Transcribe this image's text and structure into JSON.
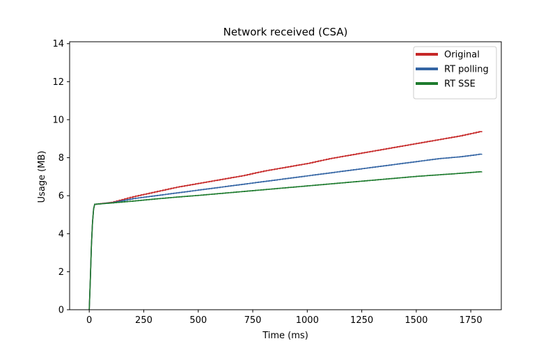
{
  "chart_data": {
    "type": "line",
    "title": "Network received (CSA)",
    "xlabel": "Time (ms)",
    "ylabel": "Usage (MB)",
    "xlim": [
      -90,
      1890
    ],
    "ylim": [
      0,
      14.1
    ],
    "xticks": [
      0,
      250,
      500,
      750,
      1000,
      1250,
      1500,
      1750
    ],
    "yticks": [
      0,
      2,
      4,
      6,
      8,
      10,
      12,
      14
    ],
    "grid": false,
    "legend_position": "top-right",
    "series": [
      {
        "name": "Original",
        "color": "#c62828",
        "x": [
          0,
          5,
          10,
          15,
          20,
          25,
          100,
          200,
          300,
          400,
          500,
          600,
          700,
          800,
          900,
          1000,
          1100,
          1200,
          1300,
          1400,
          1500,
          1600,
          1700,
          1800
        ],
        "y": [
          0,
          1.6,
          3.4,
          4.6,
          5.3,
          5.55,
          5.65,
          5.95,
          6.2,
          6.45,
          6.65,
          6.85,
          7.05,
          7.3,
          7.5,
          7.7,
          7.95,
          8.15,
          8.35,
          8.55,
          8.75,
          8.95,
          9.15,
          9.4
        ]
      },
      {
        "name": "RT polling",
        "color": "#3465a4",
        "x": [
          0,
          5,
          10,
          15,
          20,
          25,
          100,
          200,
          300,
          400,
          500,
          600,
          700,
          800,
          900,
          1000,
          1100,
          1200,
          1300,
          1400,
          1500,
          1600,
          1700,
          1800
        ],
        "y": [
          0,
          1.6,
          3.4,
          4.6,
          5.3,
          5.55,
          5.63,
          5.85,
          6.0,
          6.15,
          6.3,
          6.45,
          6.6,
          6.75,
          6.9,
          7.05,
          7.2,
          7.35,
          7.5,
          7.65,
          7.8,
          7.95,
          8.05,
          8.2
        ]
      },
      {
        "name": "RT SSE",
        "color": "#1e7b2e",
        "x": [
          0,
          5,
          10,
          15,
          20,
          25,
          100,
          200,
          300,
          400,
          500,
          600,
          700,
          800,
          900,
          1000,
          1100,
          1200,
          1300,
          1400,
          1500,
          1600,
          1700,
          1800
        ],
        "y": [
          0,
          1.6,
          3.4,
          4.6,
          5.3,
          5.55,
          5.62,
          5.72,
          5.83,
          5.93,
          6.02,
          6.12,
          6.22,
          6.32,
          6.42,
          6.52,
          6.62,
          6.72,
          6.82,
          6.92,
          7.02,
          7.1,
          7.18,
          7.27
        ]
      }
    ]
  }
}
